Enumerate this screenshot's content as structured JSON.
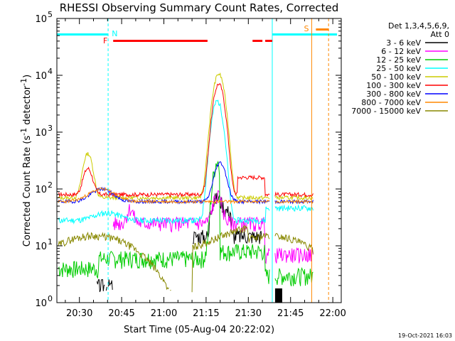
{
  "chart_data": {
    "type": "line",
    "title": "RHESSI Observing Summary Count Rates, Corrected",
    "xlabel": "Start Time (05-Aug-04 20:22:02)",
    "ylabel": "Corrected Count Rate (s⁻¹ detector⁻¹)",
    "ylabel_parts": {
      "main": "Corrected Count Rate (s",
      "sup1": "-1",
      "mid": " detector",
      "sup2": "-1",
      "end": ")"
    },
    "y_scale": "log",
    "ylim": [
      1,
      100000
    ],
    "y_ticks": [
      {
        "value": 1,
        "base": "10",
        "exp": "0"
      },
      {
        "value": 10,
        "base": "10",
        "exp": "1"
      },
      {
        "value": 100,
        "base": "10",
        "exp": "2"
      },
      {
        "value": 1000,
        "base": "10",
        "exp": "3"
      },
      {
        "value": 10000,
        "base": "10",
        "exp": "4"
      },
      {
        "value": 100000,
        "base": "10",
        "exp": "5"
      }
    ],
    "xlim_minutes_after_2000": [
      22,
      123
    ],
    "x_ticks": [
      {
        "label": "20:30",
        "minutes": 30
      },
      {
        "label": "20:45",
        "minutes": 45
      },
      {
        "label": "21:00",
        "minutes": 60
      },
      {
        "label": "21:15",
        "minutes": 75
      },
      {
        "label": "21:30",
        "minutes": 90
      },
      {
        "label": "21:45",
        "minutes": 105
      },
      {
        "label": "22:00",
        "minutes": 120
      }
    ],
    "legend_header": [
      "Det 1,3,4,5,6,9,",
      "Att 0"
    ],
    "legend_position": "right",
    "series": [
      {
        "name": "3 - 6 keV",
        "color": "#000000"
      },
      {
        "name": "6 - 12 keV",
        "color": "#ff00ff"
      },
      {
        "name": "12 - 25 keV",
        "color": "#00cc00"
      },
      {
        "name": "25 - 50 keV",
        "color": "#00ffff"
      },
      {
        "name": "50 - 100 keV",
        "color": "#cccc00"
      },
      {
        "name": "100 - 300 keV",
        "color": "#ff0000"
      },
      {
        "name": "300 - 800 keV",
        "color": "#0000ff"
      },
      {
        "name": "800 - 7000 keV",
        "color": "#ff8800"
      },
      {
        "name": "7000 - 15000 keV",
        "color": "#888800"
      }
    ],
    "annotations": [
      {
        "label": "N",
        "color": "#00ffff",
        "minutes": 40.2,
        "type": "night"
      },
      {
        "label": "F",
        "color": "#ff0000",
        "minutes": 41,
        "type": "flare"
      },
      {
        "label": "S",
        "color": "#ff8800",
        "minutes": 111.5,
        "type": "saa"
      }
    ]
  },
  "footer": {
    "date": "19-Oct-2021 16:03"
  }
}
